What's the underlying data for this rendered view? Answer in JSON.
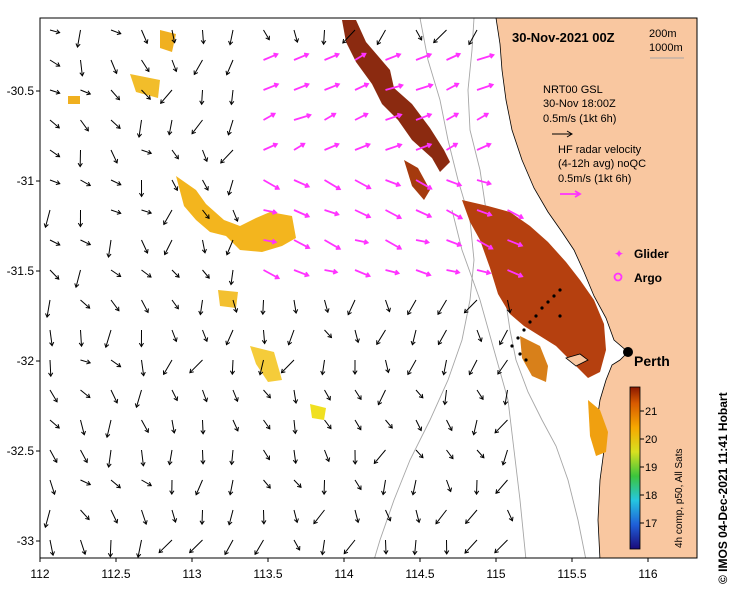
{
  "title": "30-Nov-2021 00Z",
  "contours": {
    "c200": "200m",
    "c1000": "1000m"
  },
  "gsl": {
    "l1": "NRT00 GSL",
    "l2": "30-Nov 18:00Z",
    "l3": "0.5m/s (1kt 6h)"
  },
  "hf": {
    "l1": "HF radar velocity",
    "l2": "(4-12h avg) noQC",
    "l3": "0.5m/s (1kt 6h)"
  },
  "glider_label": "Glider",
  "argo_label": "Argo",
  "city": {
    "name": "Perth",
    "lon": 115.86,
    "lat": -31.95
  },
  "colorbar": {
    "label": "4h comp, p50, All Sats",
    "ticks": [
      "17",
      "18",
      "19",
      "20",
      "21"
    ]
  },
  "credit": "© IMOS 04-Dec-2021 11:41 Hobart",
  "axes": {
    "xticks": [
      "112",
      "112.5",
      "113",
      "113.5",
      "114",
      "114.5",
      "115",
      "115.5",
      "116"
    ],
    "yticks": [
      "-30.5",
      "-31",
      "-31.5",
      "-32",
      "-32.5",
      "-33"
    ]
  },
  "colors": {
    "land": "#f9c7a0",
    "current_arrow": "#000000",
    "hf_arrow": "#ff33ff",
    "contour": "#a6a6a6"
  }
}
